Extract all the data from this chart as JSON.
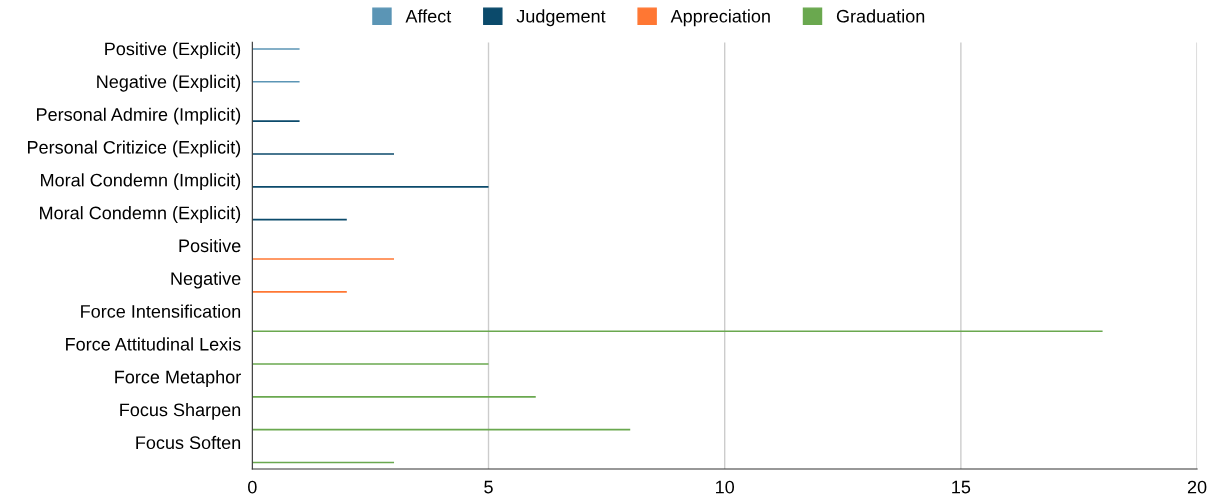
{
  "chart_data": {
    "type": "bar",
    "orientation": "horizontal",
    "categories": [
      "Positive (Explicit)",
      "Negative (Explicit)",
      "Personal Admire (Implicit)",
      "Personal Critizice (Explicit)",
      "Moral Condemn (Implicit)",
      "Moral Condemn (Explicit)",
      "Positive",
      "Negative",
      "Force Intensification",
      "Force Attitudinal Lexis",
      "Force Metaphor",
      "Focus Sharpen",
      "Focus Soften"
    ],
    "series": [
      {
        "name": "Affect",
        "color": "#5b95b5",
        "values": [
          1,
          1,
          null,
          null,
          null,
          null,
          null,
          null,
          null,
          null,
          null,
          null,
          null
        ]
      },
      {
        "name": "Judgement",
        "color": "#0b4a6b",
        "values": [
          null,
          null,
          1,
          3,
          5,
          2,
          null,
          null,
          null,
          null,
          null,
          null,
          null
        ]
      },
      {
        "name": "Appreciation",
        "color": "#ff7733",
        "values": [
          null,
          null,
          null,
          null,
          null,
          null,
          3,
          2,
          null,
          null,
          null,
          null,
          null
        ]
      },
      {
        "name": "Graduation",
        "color": "#6aa84f",
        "values": [
          null,
          null,
          null,
          null,
          null,
          null,
          null,
          null,
          18,
          5,
          6,
          8,
          3
        ]
      }
    ],
    "xlim": [
      0,
      20
    ],
    "xticks": [
      0,
      5,
      10,
      15,
      20
    ],
    "grid": "x",
    "legend": "top"
  }
}
